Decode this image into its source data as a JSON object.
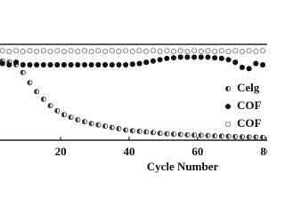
{
  "chart_data": {
    "type": "scatter",
    "x_label": "Cycle Number",
    "x": [
      1,
      3,
      5,
      7,
      9,
      11,
      13,
      15,
      17,
      19,
      21,
      23,
      25,
      27,
      29,
      31,
      33,
      35,
      37,
      39,
      41,
      43,
      45,
      47,
      49,
      51,
      53,
      55,
      57,
      59,
      61,
      63,
      65,
      67,
      69,
      71,
      73,
      75,
      77,
      79
    ],
    "xlim": [
      2.3,
      80.3
    ],
    "xticks": [
      0,
      20,
      40,
      60,
      80
    ],
    "ylim": [
      0,
      75
    ],
    "series": [
      {
        "name": "Celg",
        "color": "#9a9a9a",
        "values": [
          63,
          62,
          61,
          59,
          53,
          45,
          38,
          32,
          27,
          23,
          20,
          18,
          16,
          14.5,
          13,
          12,
          11,
          10,
          9,
          8,
          7.5,
          7,
          6.5,
          6,
          5.5,
          5,
          4.8,
          4.5,
          4.2,
          4,
          3.8,
          3.6,
          3.4,
          3.2,
          3,
          2.8,
          2.6,
          2.5,
          2.4,
          2.3
        ]
      },
      {
        "name": "COF",
        "color": "#111111",
        "values": [
          65,
          60,
          59,
          61,
          59,
          59,
          59,
          59,
          59,
          59,
          59,
          59,
          59,
          59,
          59,
          59,
          59,
          59,
          59,
          59,
          59.5,
          60,
          61,
          62,
          63,
          64,
          64.5,
          65,
          65,
          65,
          65,
          65,
          64.5,
          64,
          63,
          61,
          57,
          56,
          60,
          59
        ]
      },
      {
        "name": "COF",
        "color": "#ffffff",
        "values": [
          69.5,
          70,
          69.5,
          70,
          69.5,
          70,
          69.5,
          70,
          69.5,
          70,
          69.5,
          70,
          69.5,
          70,
          69.5,
          70,
          69.5,
          70,
          69.5,
          70,
          69.5,
          70,
          69.5,
          70,
          69.5,
          70,
          69.5,
          70,
          69.5,
          70,
          69.5,
          70,
          69.5,
          70,
          69.5,
          70,
          69.5,
          70,
          69.5,
          70
        ]
      }
    ]
  }
}
